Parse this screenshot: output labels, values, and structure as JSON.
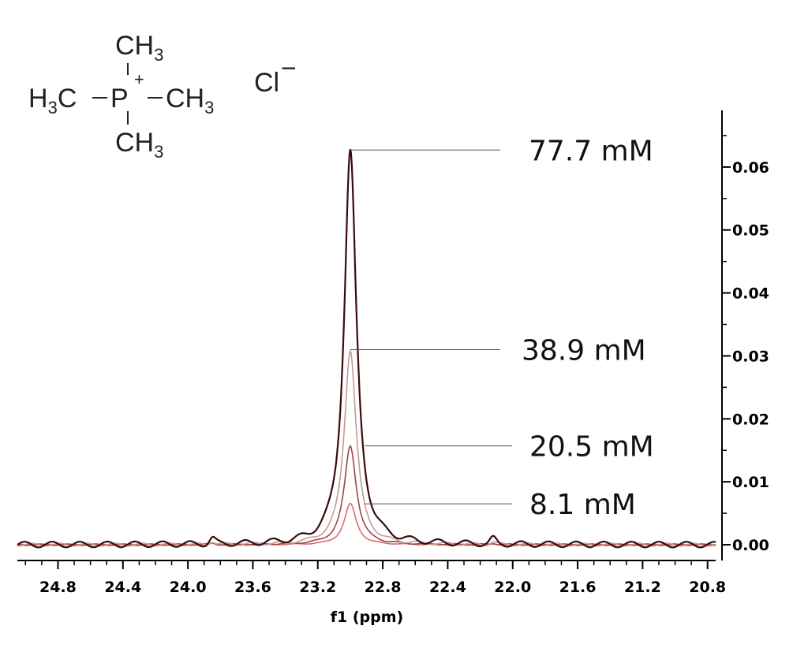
{
  "structure": {
    "top_group": [
      "CH",
      "3"
    ],
    "left_group": [
      "H",
      "3",
      "C"
    ],
    "center_atom": "P",
    "charge": "+",
    "right_group": [
      "CH",
      "3"
    ],
    "bottom_group": [
      "CH",
      "3"
    ],
    "counter_ion": "Cl",
    "counter_charge": "−"
  },
  "chart_data": {
    "type": "line",
    "title": "",
    "xlabel": "f1 (ppm)",
    "ylabel": "",
    "xlim": [
      25.05,
      20.75
    ],
    "ylim": [
      -0.0025,
      0.069
    ],
    "x_reversed": true,
    "grid": false,
    "x_ticks": [
      "24.8",
      "24.4",
      "24.0",
      "23.6",
      "23.2",
      "22.8",
      "22.4",
      "22.0",
      "21.6",
      "21.2",
      "20.8"
    ],
    "y_ticks": [
      "0.00",
      "0.01",
      "0.02",
      "0.03",
      "0.04",
      "0.05",
      "0.06"
    ],
    "peak_center": 23.0,
    "series": [
      {
        "label": "77.7 mM",
        "peak": 0.0627,
        "color": "#3a0b0b"
      },
      {
        "label": "38.9 mM",
        "peak": 0.031,
        "color": "#c29a9a"
      },
      {
        "label": "20.5 mM",
        "peak": 0.0157,
        "color": "#9e4545"
      },
      {
        "label": "8.1 mM",
        "peak": 0.0065,
        "color": "#d96a6a"
      }
    ]
  }
}
